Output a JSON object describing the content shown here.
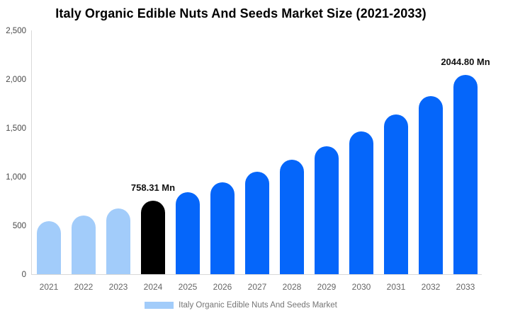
{
  "chart_data": {
    "type": "bar",
    "title": "Italy Organic Edible Nuts And Seeds Market Size (2021-2033)",
    "categories": [
      "2021",
      "2022",
      "2023",
      "2024",
      "2025",
      "2026",
      "2027",
      "2028",
      "2029",
      "2030",
      "2031",
      "2032",
      "2033"
    ],
    "values": [
      545,
      608,
      679,
      758.31,
      847,
      945,
      1056,
      1179,
      1316,
      1469,
      1640,
      1832,
      2044.8
    ],
    "unit": "Mn",
    "bar_colors": [
      "#a2ccfa",
      "#a2ccfa",
      "#a2ccfa",
      "#000000",
      "#0566fa",
      "#0566fa",
      "#0566fa",
      "#0566fa",
      "#0566fa",
      "#0566fa",
      "#0566fa",
      "#0566fa",
      "#0566fa"
    ],
    "data_labels": [
      {
        "category": "2024",
        "text": "758.31 Mn"
      },
      {
        "category": "2033",
        "text": "2044.80 Mn"
      }
    ],
    "ylim": [
      0,
      2500
    ],
    "yticks": [
      {
        "value": 0,
        "label": "0"
      },
      {
        "value": 500,
        "label": "500"
      },
      {
        "value": 1000,
        "label": "1,000"
      },
      {
        "value": 1500,
        "label": "1,500"
      },
      {
        "value": 2000,
        "label": "2,000"
      },
      {
        "value": 2500,
        "label": "2,500"
      }
    ],
    "grid": false,
    "legend_position": "bottom",
    "axis_color": "#d9d9d9"
  },
  "legend": {
    "label": "Italy Organic Edible Nuts And Seeds Market",
    "swatch_color": "#a2ccfa"
  }
}
